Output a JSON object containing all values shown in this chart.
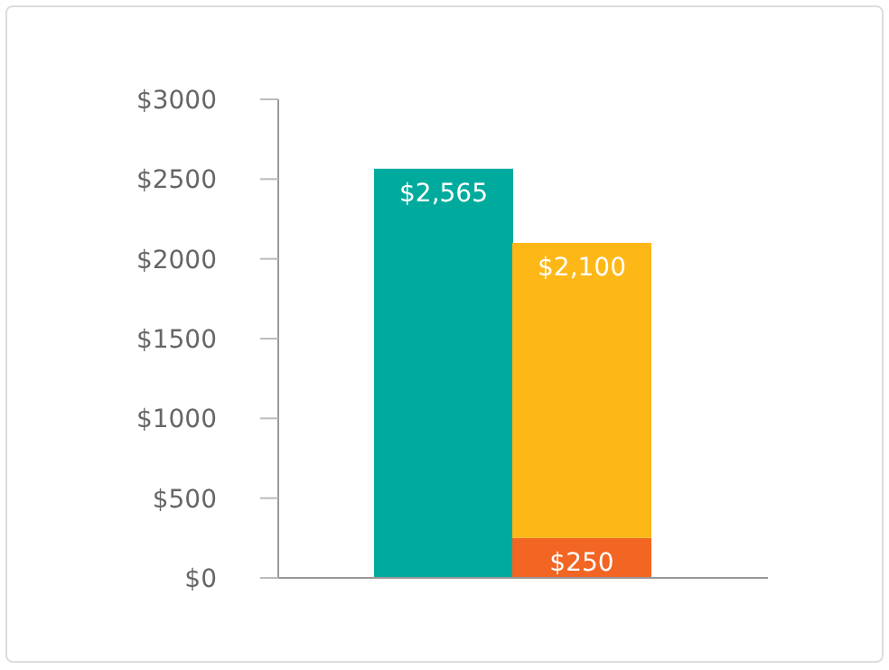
{
  "chart_data": {
    "type": "bar",
    "stacked": true,
    "categories": [
      null,
      null
    ],
    "totals": [
      null,
      "$2,100"
    ],
    "series": [
      {
        "color": "#00ab9e",
        "values": [
          2565,
          null
        ],
        "value_labels": [
          "$2,565",
          null
        ]
      },
      {
        "color": "#f26522",
        "values": [
          null,
          250
        ],
        "value_labels": [
          null,
          "$250"
        ]
      },
      {
        "color": "#fdb717",
        "values": [
          null,
          1850
        ]
      }
    ],
    "ylim": [
      0,
      3000
    ],
    "yticks": [
      {
        "value": 0,
        "label": "$0"
      },
      {
        "value": 500,
        "label": "$500"
      },
      {
        "value": 1000,
        "label": "$1000"
      },
      {
        "value": 1500,
        "label": "$1500"
      },
      {
        "value": 2000,
        "label": "$2000"
      },
      {
        "value": 2500,
        "label": "$2500"
      },
      {
        "value": 3000,
        "label": "$3000"
      }
    ],
    "grid": false,
    "legend": false
  }
}
